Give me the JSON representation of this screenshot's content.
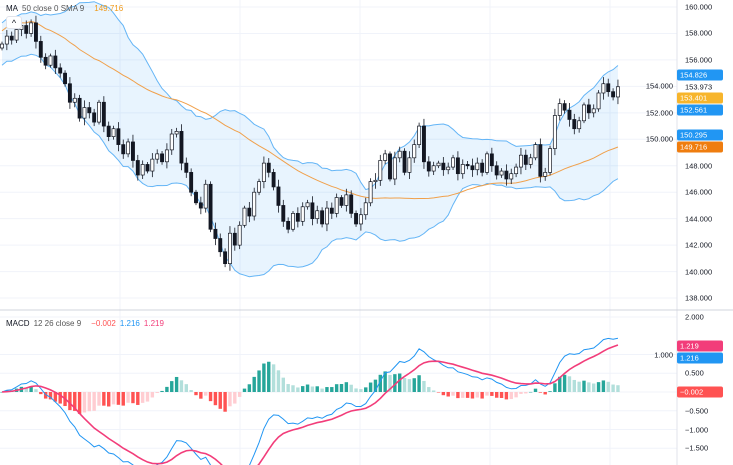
{
  "legends": {
    "ma": {
      "name": "MA",
      "params": "50 close 0 SMA 9",
      "value": "149.716"
    },
    "macd": {
      "name": "MACD",
      "params": "12 26 close 9",
      "hist": "−0.002",
      "macd": "1.216",
      "signal": "1.219"
    }
  },
  "collapse_icon": "chevron-up-icon",
  "collapse_label": "^",
  "price_axis": [
    "160.000",
    "158.000",
    "156.000",
    "154.000",
    "152.000",
    "150.000",
    "148.000",
    "146.000",
    "144.000",
    "142.000",
    "140.000",
    "138.000"
  ],
  "price_badges": [
    {
      "label": "154.826",
      "value": 154.826,
      "color": "#2196f3"
    },
    {
      "label": "153.973",
      "value": 153.973,
      "color": ""
    },
    {
      "label": "153.401",
      "value": 153.401,
      "color": "#f7b52c"
    },
    {
      "label": "152.561",
      "value": 152.561,
      "color": "#2196f3"
    },
    {
      "label": "150.295",
      "value": 150.295,
      "color": "#2196f3"
    },
    {
      "label": "149.716",
      "value": 149.716,
      "color": "#ef7d0f"
    }
  ],
  "macd_axis": [
    {
      "label": "2.000",
      "value": 2
    },
    {
      "label": "1.000",
      "value": 1
    },
    {
      "label": "0.500",
      "value": 0.5
    },
    {
      "label": "−0.500",
      "value": -0.5
    },
    {
      "label": "−1.000",
      "value": -1
    },
    {
      "label": "−1.500",
      "value": -1.5
    }
  ],
  "macd_badges": [
    {
      "label": "1.219",
      "value": 1.219,
      "color": "#f23d7a"
    },
    {
      "label": "1.216",
      "value": 1.216,
      "color": "#2196f3"
    },
    {
      "label": "−0.002",
      "value": -0.002,
      "color": "#ff5252"
    }
  ],
  "colors": {
    "bb_line": "#64b5f6",
    "bb_fill": "rgba(33,150,243,0.10)",
    "ma": "#f0a04b",
    "macd": "#2196f3",
    "signal": "#f23d7a",
    "hist_up": "#26a69a",
    "hist_up_light": "#b2dfdb",
    "hist_dn": "#ff5252",
    "hist_dn_light": "#ffcdd2",
    "ma_legend": "#ef9a1a",
    "hist_legend": "#ff5252"
  },
  "chart_data": [
    {
      "type": "candlestick",
      "ylim": [
        138,
        160
      ],
      "indicators": [
        "MA 50 SMA",
        "Bollinger Bands 20 2"
      ],
      "grid": true,
      "close": [
        157.2,
        157.8,
        157.5,
        158.3,
        158.6,
        158.0,
        158.8,
        157.4,
        156.2,
        155.6,
        156.3,
        155.4,
        155.0,
        154.2,
        152.8,
        153.1,
        151.6,
        152.4,
        152.0,
        151.3,
        152.8,
        151.0,
        150.2,
        150.8,
        149.6,
        148.9,
        149.8,
        148.4,
        147.3,
        148.1,
        147.6,
        148.5,
        148.9,
        148.3,
        149.2,
        150.4,
        150.6,
        148.2,
        147.5,
        146.0,
        145.2,
        144.8,
        146.6,
        143.2,
        142.5,
        141.5,
        140.6,
        142.9,
        142.0,
        143.5,
        144.8,
        144.2,
        146.0,
        146.8,
        148.2,
        147.5,
        146.4,
        145.0,
        143.8,
        143.2,
        144.4,
        143.8,
        144.9,
        145.2,
        144.0,
        144.6,
        143.6,
        144.8,
        144.4,
        145.6,
        145.0,
        145.8,
        144.4,
        143.6,
        144.3,
        145.2,
        146.8,
        146.9,
        148.4,
        148.9,
        147.0,
        148.6,
        149.1,
        147.5,
        148.6,
        149.6,
        151.0,
        148.3,
        147.6,
        148.0,
        148.2,
        147.7,
        147.9,
        148.6,
        147.4,
        148.1,
        148.0,
        147.7,
        148.2,
        147.5,
        148.9,
        148.0,
        147.3,
        147.6,
        147.0,
        147.4,
        147.9,
        148.8,
        148.1,
        148.6,
        149.6,
        147.2,
        147.5,
        149.3,
        151.8,
        152.7,
        152.2,
        151.5,
        150.8,
        151.4,
        152.6,
        152.0,
        152.3,
        153.5,
        154.2,
        153.6,
        153.2,
        153.973
      ]
    },
    {
      "type": "macd",
      "ylim": [
        -1.6,
        2.1
      ],
      "fast": 12,
      "slow": 26,
      "signal": 9
    }
  ]
}
